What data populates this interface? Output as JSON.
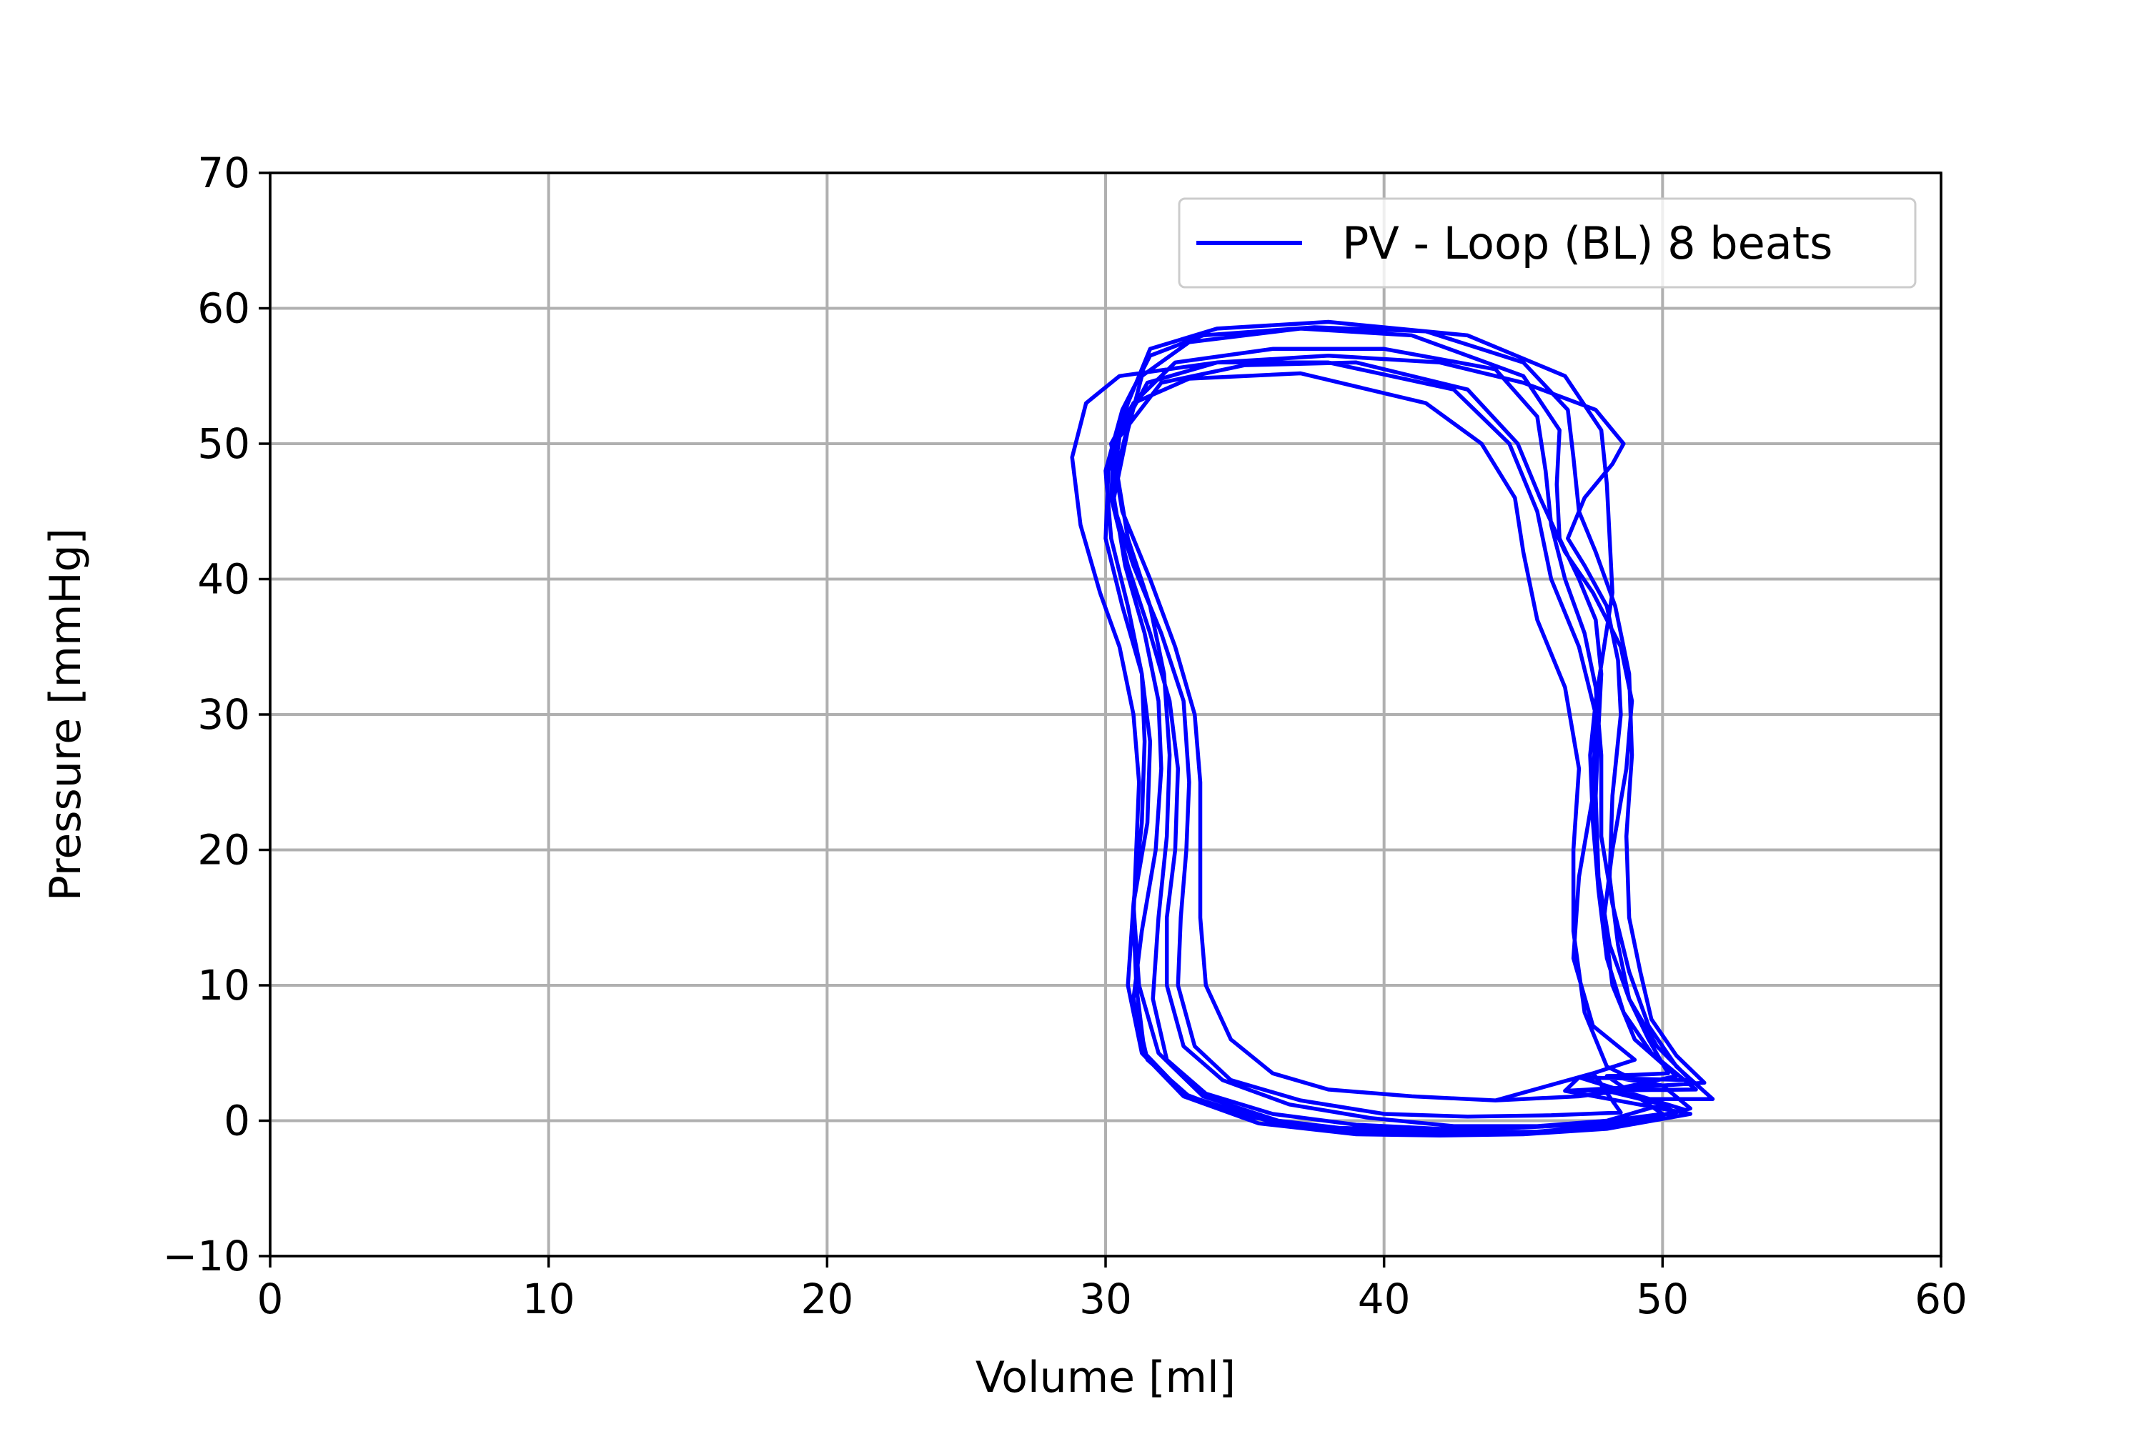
{
  "chart_data": {
    "type": "line",
    "title": "",
    "xlabel": "Volume [ml]",
    "ylabel": "Pressure [mmHg]",
    "xlim": [
      0,
      60
    ],
    "ylim": [
      -10,
      70
    ],
    "xticks": [
      "0",
      "10",
      "20",
      "30",
      "40",
      "50",
      "60"
    ],
    "yticks": [
      "−10",
      "0",
      "10",
      "20",
      "30",
      "40",
      "50",
      "60",
      "70"
    ],
    "grid": true,
    "legend_position": "top-right",
    "colors": {
      "series": "#0000ff",
      "grid": "#b0b0b0"
    },
    "series": [
      {
        "name": "PV - Loop (BL) 8 beats",
        "points": [
          [
            44,
            1.5
          ],
          [
            47,
            1.8
          ],
          [
            49.5,
            2.5
          ],
          [
            48,
            4
          ],
          [
            47.2,
            8
          ],
          [
            46.8,
            14
          ],
          [
            46.8,
            20
          ],
          [
            47,
            26
          ],
          [
            46.5,
            32
          ],
          [
            45.5,
            37
          ],
          [
            45,
            42
          ],
          [
            44.7,
            46
          ],
          [
            43.5,
            50
          ],
          [
            41.5,
            53
          ],
          [
            37,
            55.2
          ],
          [
            33,
            54.8
          ],
          [
            31,
            53
          ],
          [
            30.2,
            50
          ],
          [
            30.6,
            45
          ],
          [
            31.6,
            40
          ],
          [
            32.5,
            35
          ],
          [
            33.2,
            30
          ],
          [
            33.4,
            25
          ],
          [
            33.4,
            20
          ],
          [
            33.4,
            15
          ],
          [
            33.6,
            10
          ],
          [
            34.5,
            6
          ],
          [
            36,
            3.5
          ],
          [
            38,
            2.3
          ],
          [
            41,
            1.8
          ],
          [
            44,
            1.5
          ],
          [
            47.5,
            3.5
          ],
          [
            49,
            4.5
          ],
          [
            47.5,
            7
          ],
          [
            46.8,
            12
          ],
          [
            47,
            18
          ],
          [
            47.5,
            24
          ],
          [
            47.6,
            30
          ],
          [
            47,
            35
          ],
          [
            46,
            40
          ],
          [
            45.5,
            45
          ],
          [
            44.5,
            50
          ],
          [
            42.5,
            54
          ],
          [
            38,
            56
          ],
          [
            34,
            56
          ],
          [
            31.5,
            54.5
          ],
          [
            30.3,
            50
          ],
          [
            30.2,
            46
          ],
          [
            31,
            41
          ],
          [
            32,
            36
          ],
          [
            32.8,
            31
          ],
          [
            33,
            25
          ],
          [
            32.9,
            20
          ],
          [
            32.7,
            15
          ],
          [
            32.6,
            10
          ],
          [
            33.2,
            5.5
          ],
          [
            34.5,
            3
          ],
          [
            37,
            1.5
          ],
          [
            40,
            0.5
          ],
          [
            43,
            0.3
          ],
          [
            46,
            0.4
          ],
          [
            48.5,
            0.6
          ],
          [
            47.5,
            3.5
          ],
          [
            48,
            2.2
          ],
          [
            50.5,
            3.3
          ],
          [
            49,
            6
          ],
          [
            48.2,
            10
          ],
          [
            47.9,
            15
          ],
          [
            48.2,
            20
          ],
          [
            48.7,
            26
          ],
          [
            48.9,
            31
          ],
          [
            48.5,
            35
          ],
          [
            47.5,
            39
          ],
          [
            46.5,
            42
          ],
          [
            45.6,
            46
          ],
          [
            44.8,
            50
          ],
          [
            43,
            54
          ],
          [
            39,
            56
          ],
          [
            35,
            55.8
          ],
          [
            32,
            54.5
          ],
          [
            30.5,
            50.5
          ],
          [
            30.2,
            46
          ],
          [
            30.8,
            41
          ],
          [
            31.6,
            36
          ],
          [
            32.3,
            31
          ],
          [
            32.6,
            26
          ],
          [
            32.5,
            20
          ],
          [
            32.2,
            15
          ],
          [
            32.2,
            10
          ],
          [
            32.8,
            5.5
          ],
          [
            34.2,
            3
          ],
          [
            36.6,
            1.2
          ],
          [
            39.5,
            0.2
          ],
          [
            42.5,
            -0.4
          ],
          [
            45.5,
            -0.4
          ],
          [
            48,
            0
          ],
          [
            50,
            1.2
          ],
          [
            48,
            2.2
          ],
          [
            49.5,
            1.6
          ],
          [
            51.8,
            1.6
          ],
          [
            50.5,
            4
          ],
          [
            49.5,
            7
          ],
          [
            48.8,
            11
          ],
          [
            48.2,
            16
          ],
          [
            47.8,
            21
          ],
          [
            47.8,
            27
          ],
          [
            47.6,
            32
          ],
          [
            47.2,
            36
          ],
          [
            46.5,
            40
          ],
          [
            46,
            44
          ],
          [
            45.8,
            48
          ],
          [
            45.5,
            52
          ],
          [
            44,
            55.5
          ],
          [
            40,
            57
          ],
          [
            36,
            57
          ],
          [
            32.5,
            56
          ],
          [
            31,
            53
          ],
          [
            30.4,
            48
          ],
          [
            30.8,
            43
          ],
          [
            31.6,
            38
          ],
          [
            32.1,
            33
          ],
          [
            32.3,
            27
          ],
          [
            32.2,
            21
          ],
          [
            31.9,
            15
          ],
          [
            31.7,
            9
          ],
          [
            32.2,
            4.5
          ],
          [
            33.6,
            2
          ],
          [
            36,
            0.5
          ],
          [
            39,
            -0.3
          ],
          [
            42,
            -0.6
          ],
          [
            45,
            -0.5
          ],
          [
            48,
            -0.2
          ],
          [
            50.5,
            0.6
          ],
          [
            49.5,
            1.6
          ],
          [
            47,
            3.2
          ],
          [
            51,
            3
          ],
          [
            49.8,
            5.5
          ],
          [
            48.8,
            9
          ],
          [
            48.1,
            13
          ],
          [
            47.7,
            18
          ],
          [
            47.6,
            24
          ],
          [
            47.7,
            29
          ],
          [
            47.8,
            33
          ],
          [
            47.6,
            37
          ],
          [
            47,
            40
          ],
          [
            46.3,
            43
          ],
          [
            46.2,
            47
          ],
          [
            46.3,
            51
          ],
          [
            45,
            55
          ],
          [
            41,
            58
          ],
          [
            37,
            58.5
          ],
          [
            33,
            57.5
          ],
          [
            31.3,
            55
          ],
          [
            30.8,
            51
          ],
          [
            30.3,
            46
          ],
          [
            30.7,
            41
          ],
          [
            31.4,
            36
          ],
          [
            31.9,
            31
          ],
          [
            32,
            26
          ],
          [
            31.8,
            20
          ],
          [
            31.3,
            14
          ],
          [
            31,
            9
          ],
          [
            31.5,
            4.5
          ],
          [
            33,
            1.8
          ],
          [
            35.8,
            0
          ],
          [
            39,
            -0.8
          ],
          [
            42,
            -1
          ],
          [
            45,
            -0.9
          ],
          [
            48,
            -0.5
          ],
          [
            50.8,
            0.8
          ],
          [
            47,
            3.2
          ],
          [
            46.5,
            2.2
          ],
          [
            51.2,
            2.3
          ],
          [
            49.6,
            5
          ],
          [
            48.6,
            8
          ],
          [
            48,
            12
          ],
          [
            47.7,
            17
          ],
          [
            47.5,
            22
          ],
          [
            47.4,
            27
          ],
          [
            47.6,
            31
          ],
          [
            47.9,
            35
          ],
          [
            48.2,
            39
          ],
          [
            48.1,
            43
          ],
          [
            48,
            47
          ],
          [
            47.8,
            51
          ],
          [
            46.5,
            55
          ],
          [
            43,
            58
          ],
          [
            38,
            59
          ],
          [
            34,
            58.5
          ],
          [
            31.6,
            57
          ],
          [
            30.8,
            53
          ],
          [
            30.1,
            48
          ],
          [
            30,
            43
          ],
          [
            30.6,
            38
          ],
          [
            31.3,
            33
          ],
          [
            31.6,
            28
          ],
          [
            31.5,
            22
          ],
          [
            31,
            16
          ],
          [
            30.8,
            10
          ],
          [
            31.3,
            5
          ],
          [
            32.8,
            1.8
          ],
          [
            35.5,
            -0.2
          ],
          [
            39,
            -1
          ],
          [
            42,
            -1.1
          ],
          [
            45,
            -1
          ],
          [
            48,
            -0.6
          ],
          [
            51,
            0.5
          ],
          [
            46.5,
            2.2
          ],
          [
            50,
            2.6
          ],
          [
            51.5,
            2.8
          ],
          [
            50.5,
            4.8
          ],
          [
            49.6,
            7.5
          ],
          [
            49.2,
            11
          ],
          [
            48.8,
            15
          ],
          [
            48.7,
            21
          ],
          [
            48.9,
            27
          ],
          [
            48.8,
            33
          ],
          [
            48.3,
            38
          ],
          [
            47.6,
            42
          ],
          [
            47,
            45
          ],
          [
            46.8,
            49
          ],
          [
            46.6,
            52.5
          ],
          [
            45,
            56
          ],
          [
            41.5,
            58.3
          ],
          [
            37.5,
            58.6
          ],
          [
            33.5,
            58
          ],
          [
            31.6,
            56.5
          ],
          [
            30.6,
            52.5
          ],
          [
            30,
            48
          ],
          [
            30.2,
            43
          ],
          [
            30.8,
            38
          ],
          [
            31.3,
            33
          ],
          [
            31.4,
            28
          ],
          [
            31.3,
            22
          ],
          [
            31,
            16
          ],
          [
            31.2,
            10
          ],
          [
            31.9,
            5
          ],
          [
            33.5,
            1.8
          ],
          [
            36.2,
            0
          ],
          [
            39.5,
            -0.8
          ],
          [
            42.5,
            -0.9
          ],
          [
            45.5,
            -0.8
          ],
          [
            48.5,
            -0.3
          ],
          [
            51,
            0.9
          ],
          [
            50,
            2.6
          ],
          [
            48,
            3.3
          ],
          [
            50.2,
            3.5
          ],
          [
            49.5,
            6
          ],
          [
            48.8,
            9
          ],
          [
            48.4,
            13
          ],
          [
            48.1,
            18
          ],
          [
            48.2,
            24
          ],
          [
            48.5,
            30
          ],
          [
            48.4,
            34
          ],
          [
            48,
            38
          ],
          [
            47.2,
            41
          ],
          [
            46.6,
            43
          ],
          [
            47.2,
            46
          ],
          [
            48.2,
            48.5
          ],
          [
            48.6,
            50
          ],
          [
            47.6,
            52.5
          ],
          [
            45,
            54.5
          ],
          [
            42,
            56
          ],
          [
            38,
            56.5
          ],
          [
            34,
            56
          ],
          [
            30.5,
            55
          ],
          [
            29.3,
            53
          ],
          [
            28.8,
            49
          ],
          [
            29.1,
            44
          ],
          [
            29.8,
            39
          ],
          [
            30.5,
            35
          ],
          [
            31,
            30
          ],
          [
            31.2,
            25
          ],
          [
            31.1,
            20
          ],
          [
            31,
            15
          ],
          [
            31.1,
            10
          ],
          [
            31.4,
            5
          ],
          [
            32.8,
            2
          ],
          [
            35,
            0.3
          ],
          [
            38,
            -0.5
          ],
          [
            41,
            -0.7
          ],
          [
            44,
            -0.6
          ],
          [
            47,
            -0.3
          ],
          [
            50,
            0.5
          ],
          [
            48,
            3.3
          ]
        ]
      }
    ]
  }
}
